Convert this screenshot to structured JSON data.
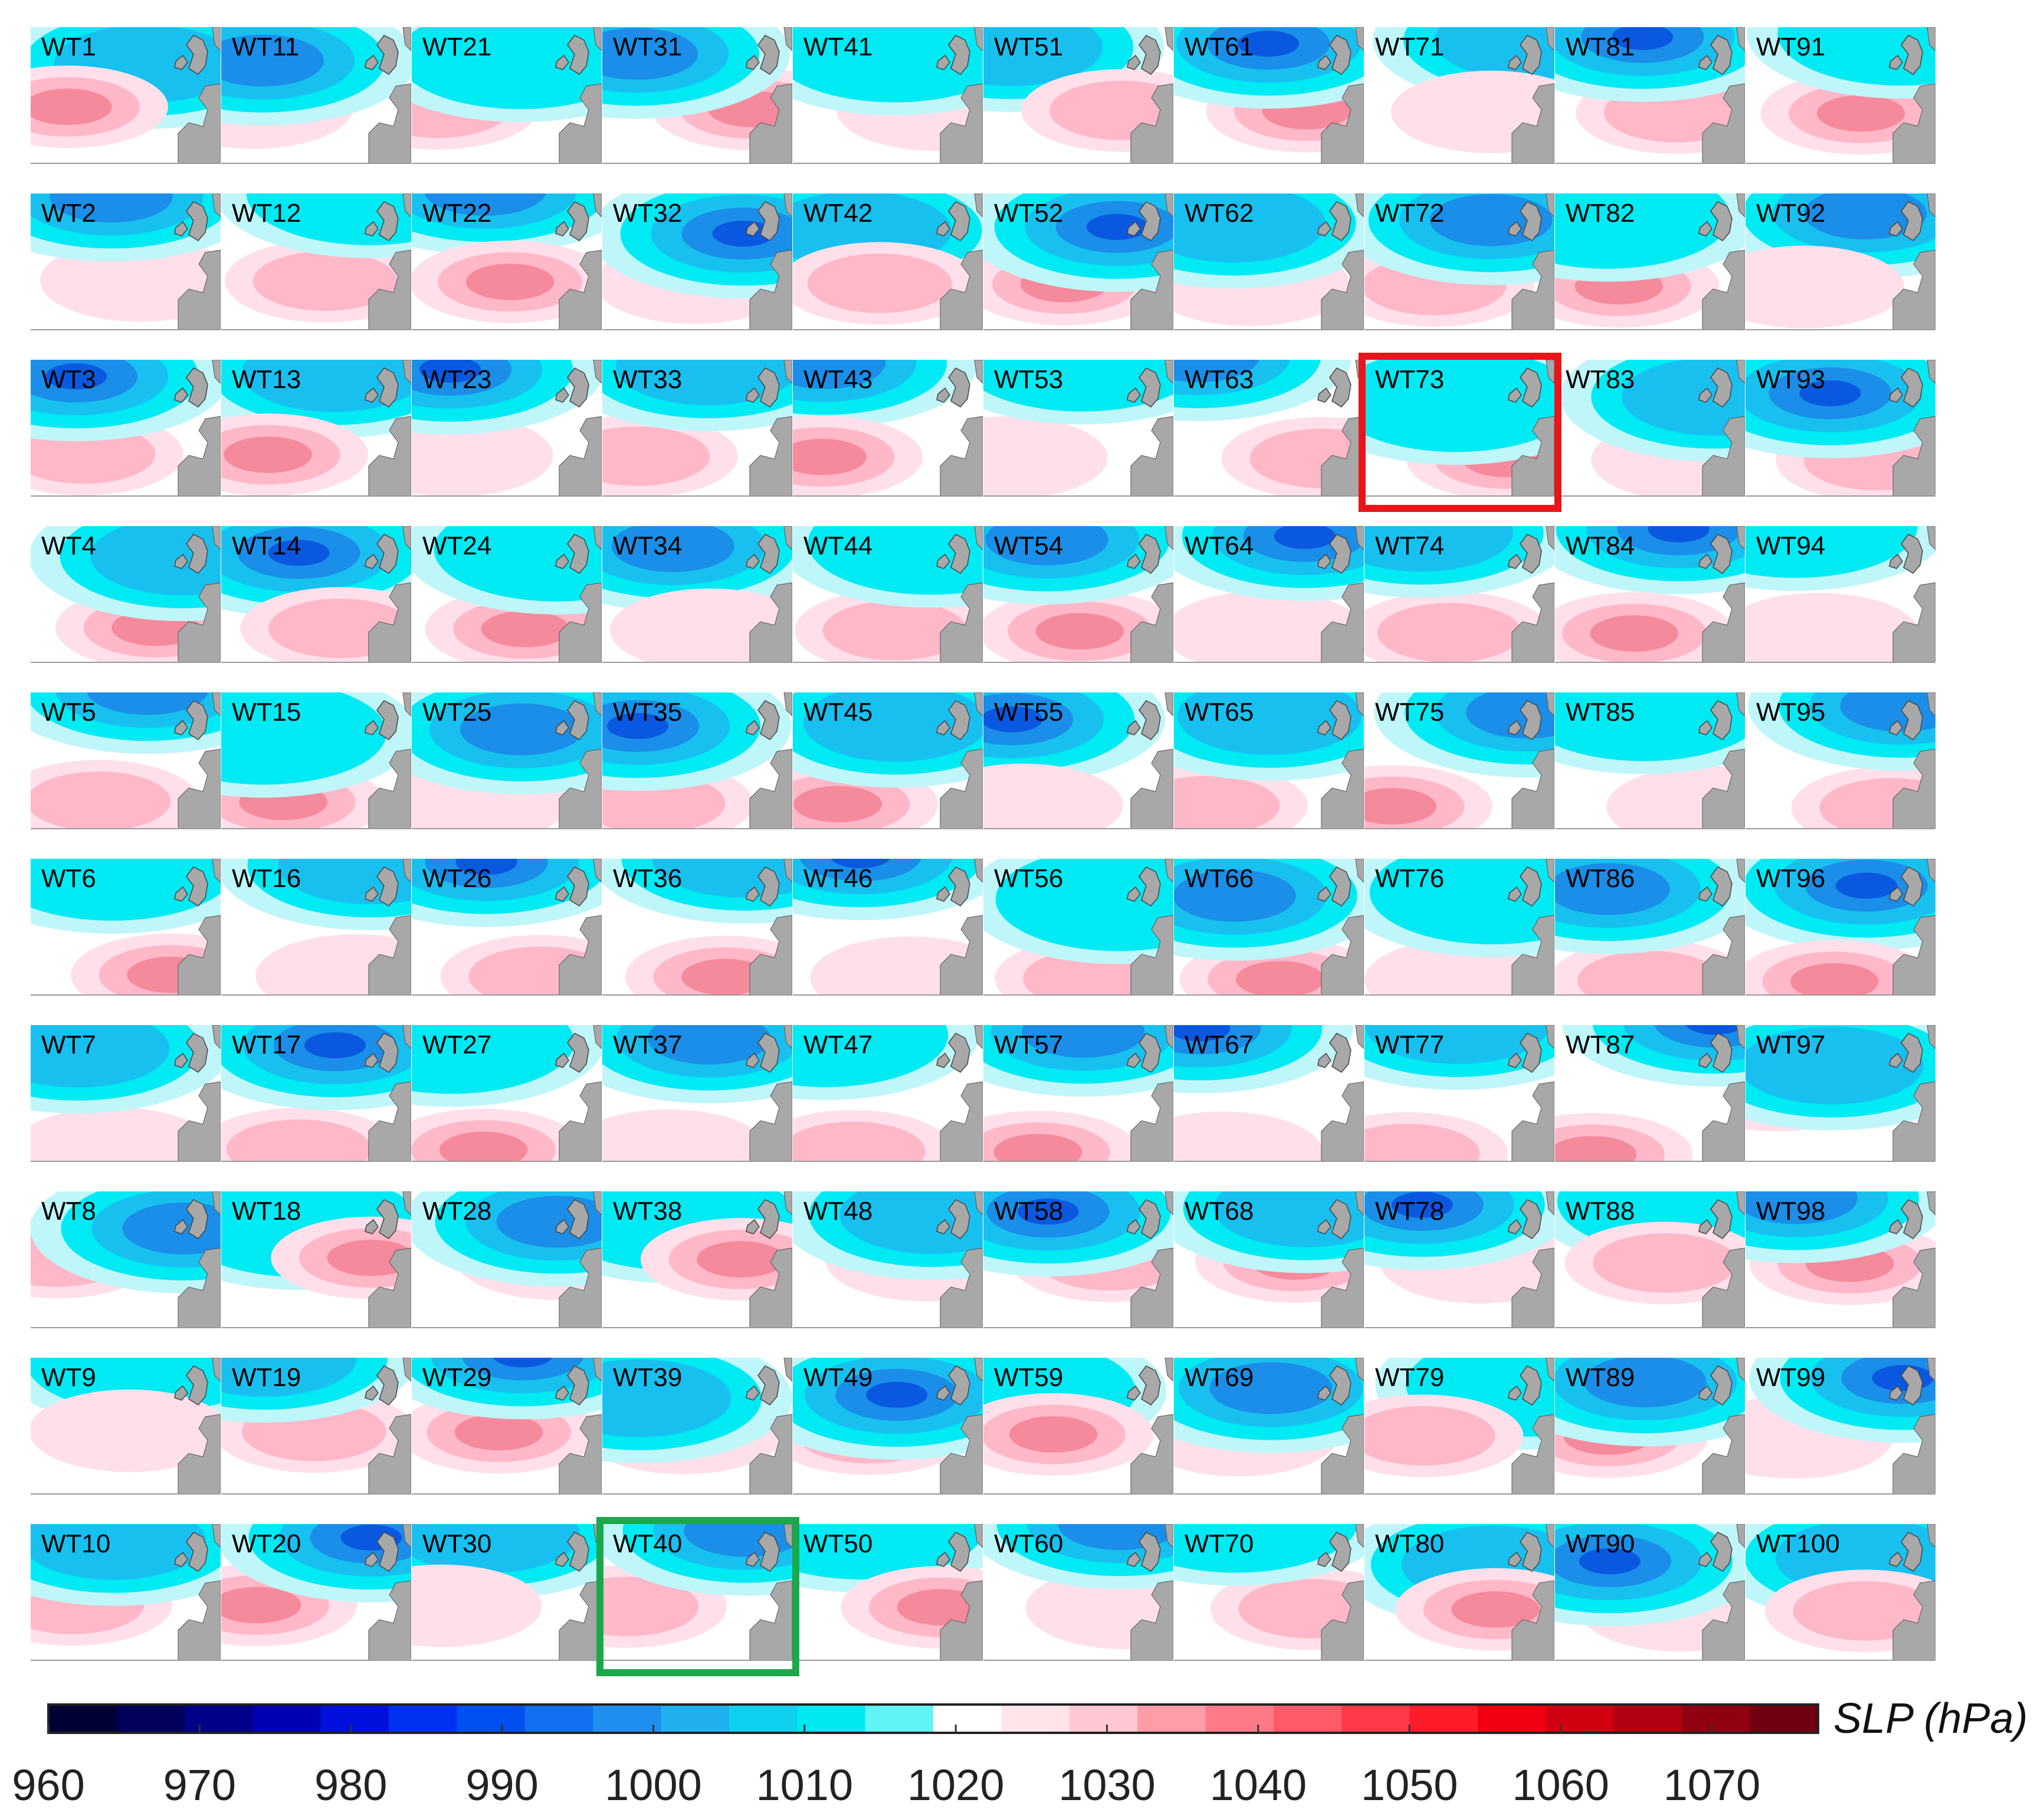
{
  "figure": {
    "panels": [
      "WT1",
      "WT11",
      "WT21",
      "WT31",
      "WT41",
      "WT51",
      "WT61",
      "WT71",
      "WT81",
      "WT91",
      "WT2",
      "WT12",
      "WT22",
      "WT32",
      "WT42",
      "WT52",
      "WT62",
      "WT72",
      "WT82",
      "WT92",
      "WT3",
      "WT13",
      "WT23",
      "WT33",
      "WT43",
      "WT53",
      "WT63",
      "WT73",
      "WT83",
      "WT93",
      "WT4",
      "WT14",
      "WT24",
      "WT34",
      "WT44",
      "WT54",
      "WT64",
      "WT74",
      "WT84",
      "WT94",
      "WT5",
      "WT15",
      "WT25",
      "WT35",
      "WT45",
      "WT55",
      "WT65",
      "WT75",
      "WT85",
      "WT95",
      "WT6",
      "WT16",
      "WT26",
      "WT36",
      "WT46",
      "WT56",
      "WT66",
      "WT76",
      "WT86",
      "WT96",
      "WT7",
      "WT17",
      "WT27",
      "WT37",
      "WT47",
      "WT57",
      "WT67",
      "WT77",
      "WT87",
      "WT97",
      "WT8",
      "WT18",
      "WT28",
      "WT38",
      "WT48",
      "WT58",
      "WT68",
      "WT78",
      "WT88",
      "WT98",
      "WT9",
      "WT19",
      "WT29",
      "WT39",
      "WT49",
      "WT59",
      "WT69",
      "WT79",
      "WT89",
      "WT99",
      "WT10",
      "WT20",
      "WT30",
      "WT40",
      "WT50",
      "WT60",
      "WT70",
      "WT80",
      "WT90",
      "WT100"
    ],
    "highlighted": [
      {
        "panel": "WT73",
        "color": "#e8151b"
      },
      {
        "panel": "WT40",
        "color": "#1aa84a"
      }
    ]
  },
  "colorbar": {
    "unit": "SLP (hPa)",
    "ticks": [
      "960",
      "970",
      "980",
      "990",
      "1000",
      "1010",
      "1020",
      "1030",
      "1040",
      "1050",
      "1060",
      "1070"
    ],
    "colors": [
      "#000033",
      "#00005a",
      "#000088",
      "#0000b4",
      "#0010dc",
      "#0030f0",
      "#0050f0",
      "#1070f0",
      "#2090f0",
      "#20b0f0",
      "#10d0f0",
      "#00e8f0",
      "#60f4f4",
      "#ffffff",
      "#ffe4ea",
      "#ffc8d2",
      "#ff9caa",
      "#ff7a88",
      "#ff5a68",
      "#ff3a48",
      "#ff1c2a",
      "#f00010",
      "#d00010",
      "#b00010",
      "#900010",
      "#700010"
    ]
  },
  "map_colors": {
    "land": "#a8a8a8",
    "ocean": "#ffffff",
    "neg": [
      "#bff6fa",
      "#00eaf4",
      "#18c0f0",
      "#1a8ee8",
      "#0a58e0",
      "#0020c8"
    ],
    "pos": [
      "#ffe0ea",
      "#ffb8c8",
      "#f58a9c",
      "#ec5868",
      "#e02838"
    ]
  }
}
